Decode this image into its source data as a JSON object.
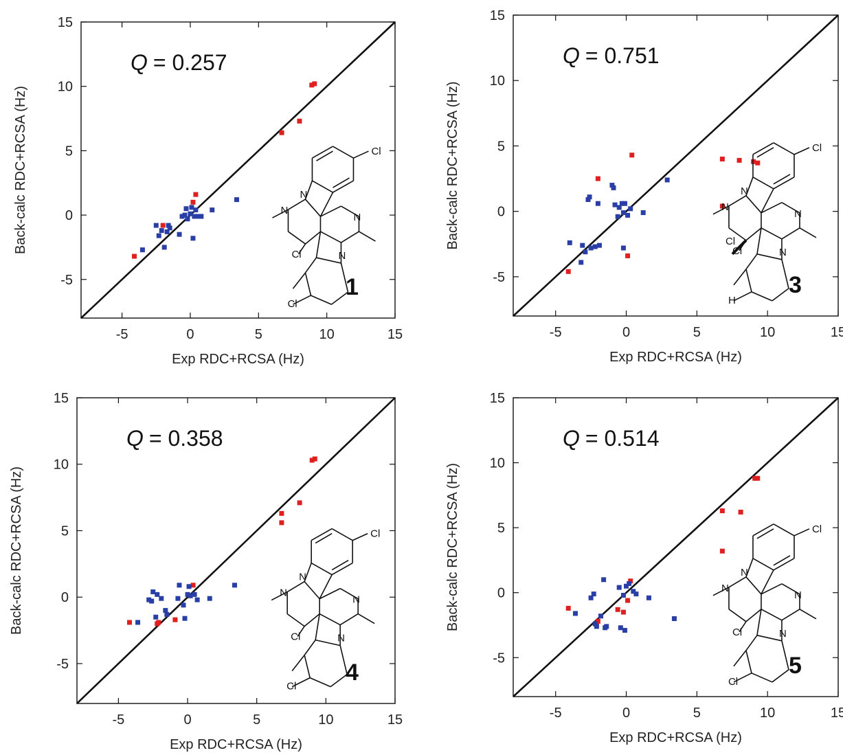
{
  "chart_data": [
    {
      "type": "scatter",
      "q_symbol": "Q",
      "q_text": "= 0.257",
      "compound_number": "1",
      "xlabel": "Exp RDC+RCSA (Hz)",
      "ylabel": "Back-calc RDC+RCSA (Hz)",
      "xlim": [
        -8,
        15
      ],
      "ylim": [
        -8,
        15
      ],
      "xticks": [
        -5,
        0,
        5,
        10,
        15
      ],
      "yticks": [
        -5,
        0,
        5,
        10,
        15
      ],
      "diagonal": "y = x",
      "molecule_labels": [
        "Cl",
        "N",
        "N",
        "N",
        "N",
        "Cl",
        "Cl"
      ],
      "series": [
        {
          "color": "#e02020",
          "points": [
            [
              -4.1,
              -3.2
            ],
            [
              -2.0,
              -0.8
            ],
            [
              0.2,
              1.0
            ],
            [
              0.4,
              1.6
            ],
            [
              6.7,
              6.4
            ],
            [
              8.0,
              7.3
            ],
            [
              8.9,
              10.1
            ],
            [
              9.1,
              10.2
            ]
          ]
        },
        {
          "color": "#2a3fa5",
          "points": [
            [
              -3.5,
              -2.7
            ],
            [
              -2.5,
              -0.8
            ],
            [
              -2.3,
              -1.6
            ],
            [
              -2.1,
              -1.2
            ],
            [
              -1.9,
              -2.5
            ],
            [
              -1.7,
              -1.3
            ],
            [
              -1.6,
              -0.8
            ],
            [
              -1.5,
              -1.0
            ],
            [
              -0.8,
              -1.5
            ],
            [
              -0.6,
              -0.1
            ],
            [
              -0.4,
              0.0
            ],
            [
              -0.3,
              0.5
            ],
            [
              -0.2,
              -0.3
            ],
            [
              0.0,
              0.1
            ],
            [
              0.1,
              0.6
            ],
            [
              0.2,
              -1.8
            ],
            [
              0.3,
              -0.1
            ],
            [
              0.4,
              0.4
            ],
            [
              0.6,
              -0.1
            ],
            [
              0.8,
              -0.1
            ],
            [
              1.6,
              0.4
            ],
            [
              3.4,
              1.2
            ]
          ]
        }
      ]
    },
    {
      "type": "scatter",
      "q_symbol": "Q",
      "q_text": "= 0.751",
      "compound_number": "3",
      "xlabel": "Exp RDC+RCSA (Hz)",
      "ylabel": "Back-calc RDC+RCSA (Hz)",
      "xlim": [
        -8,
        15
      ],
      "ylim": [
        -8,
        15
      ],
      "xticks": [
        -5,
        0,
        5,
        10,
        15
      ],
      "yticks": [
        -5,
        0,
        5,
        10,
        15
      ],
      "diagonal": "y = x",
      "molecule_labels": [
        "Cl",
        "N",
        "N",
        "N",
        "N",
        "Cl",
        "H",
        "Cl"
      ],
      "series": [
        {
          "color": "#e02020",
          "points": [
            [
              -4.1,
              -4.6
            ],
            [
              -2.0,
              2.5
            ],
            [
              0.1,
              -3.4
            ],
            [
              0.4,
              4.3
            ],
            [
              6.8,
              4.0
            ],
            [
              6.8,
              0.4
            ],
            [
              8.0,
              3.9
            ],
            [
              9.0,
              3.8
            ],
            [
              9.3,
              3.7
            ]
          ]
        },
        {
          "color": "#2a3fa5",
          "points": [
            [
              -4.0,
              -2.4
            ],
            [
              -3.2,
              -3.9
            ],
            [
              -3.1,
              -2.6
            ],
            [
              -2.9,
              -3.1
            ],
            [
              -2.7,
              0.9
            ],
            [
              -2.6,
              1.1
            ],
            [
              -2.5,
              -2.8
            ],
            [
              -2.2,
              -2.7
            ],
            [
              -2.0,
              0.6
            ],
            [
              -1.9,
              -2.6
            ],
            [
              -1.0,
              2.0
            ],
            [
              -0.9,
              1.8
            ],
            [
              -0.8,
              0.5
            ],
            [
              -0.6,
              -0.4
            ],
            [
              -0.5,
              0.3
            ],
            [
              -0.3,
              0.6
            ],
            [
              -0.2,
              -0.1
            ],
            [
              -0.2,
              -2.8
            ],
            [
              -0.1,
              0.6
            ],
            [
              0.1,
              -0.3
            ],
            [
              0.3,
              0.2
            ],
            [
              1.2,
              -0.1
            ],
            [
              2.9,
              2.4
            ]
          ]
        }
      ]
    },
    {
      "type": "scatter",
      "q_symbol": "Q",
      "q_text": "= 0.358",
      "compound_number": "4",
      "xlabel": "Exp RDC+RCSA (Hz)",
      "ylabel": "Back-calc RDC+RCSA (Hz)",
      "xlim": [
        -8,
        15
      ],
      "ylim": [
        -8,
        15
      ],
      "xticks": [
        -5,
        0,
        5,
        10,
        15
      ],
      "yticks": [
        -5,
        0,
        5,
        10,
        15
      ],
      "diagonal": "y = x",
      "molecule_labels": [
        "Cl",
        "N",
        "N",
        "N",
        "N",
        "Cl",
        "Cl"
      ],
      "series": [
        {
          "color": "#e02020",
          "points": [
            [
              -4.2,
              -1.9
            ],
            [
              -2.2,
              -2.0
            ],
            [
              -2.1,
              -1.9
            ],
            [
              -0.9,
              -1.7
            ],
            [
              0.4,
              0.9
            ],
            [
              6.8,
              6.3
            ],
            [
              6.8,
              5.6
            ],
            [
              8.1,
              7.1
            ],
            [
              9.0,
              10.3
            ],
            [
              9.2,
              10.4
            ]
          ]
        },
        {
          "color": "#2a3fa5",
          "points": [
            [
              -3.6,
              -1.9
            ],
            [
              -2.8,
              -0.2
            ],
            [
              -2.6,
              -0.3
            ],
            [
              -2.5,
              0.4
            ],
            [
              -2.3,
              -1.5
            ],
            [
              -2.2,
              0.2
            ],
            [
              -1.9,
              -0.1
            ],
            [
              -1.6,
              -1.0
            ],
            [
              -1.5,
              -1.3
            ],
            [
              -0.7,
              -0.1
            ],
            [
              -0.6,
              0.9
            ],
            [
              -0.3,
              -0.6
            ],
            [
              -0.2,
              -1.6
            ],
            [
              0.0,
              0.2
            ],
            [
              0.1,
              0.8
            ],
            [
              0.2,
              0.1
            ],
            [
              0.5,
              0.2
            ],
            [
              0.7,
              -0.2
            ],
            [
              1.6,
              -0.1
            ],
            [
              3.4,
              0.9
            ]
          ]
        }
      ]
    },
    {
      "type": "scatter",
      "q_symbol": "Q",
      "q_text": "= 0.514",
      "compound_number": "5",
      "xlabel": "Exp RDC+RCSA (Hz)",
      "ylabel": "Back-calc RDC+RCSA (Hz)",
      "xlim": [
        -8,
        15
      ],
      "ylim": [
        -8,
        15
      ],
      "xticks": [
        -5,
        0,
        5,
        10,
        15
      ],
      "yticks": [
        -5,
        0,
        5,
        10,
        15
      ],
      "diagonal": "y = x",
      "molecule_labels": [
        "Cl",
        "N",
        "N",
        "N",
        "N",
        "Cl",
        "Cl"
      ],
      "series": [
        {
          "color": "#e02020",
          "points": [
            [
              -4.1,
              -1.2
            ],
            [
              -2.1,
              -2.4
            ],
            [
              -2.0,
              -2.2
            ],
            [
              -0.6,
              -1.3
            ],
            [
              -0.2,
              -1.5
            ],
            [
              0.1,
              -0.6
            ],
            [
              0.3,
              0.9
            ],
            [
              6.8,
              6.3
            ],
            [
              6.8,
              3.2
            ],
            [
              8.1,
              6.2
            ],
            [
              9.1,
              8.8
            ],
            [
              9.3,
              8.8
            ]
          ]
        },
        {
          "color": "#2a3fa5",
          "points": [
            [
              -3.6,
              -1.6
            ],
            [
              -2.5,
              -0.4
            ],
            [
              -2.3,
              -0.1
            ],
            [
              -2.2,
              -2.4
            ],
            [
              -2.1,
              -2.6
            ],
            [
              -1.8,
              -1.8
            ],
            [
              -1.6,
              1.0
            ],
            [
              -1.5,
              -2.7
            ],
            [
              -1.4,
              -2.6
            ],
            [
              -0.5,
              0.4
            ],
            [
              -0.4,
              -2.7
            ],
            [
              -0.2,
              -0.2
            ],
            [
              -0.1,
              -2.9
            ],
            [
              0.0,
              0.5
            ],
            [
              0.2,
              0.7
            ],
            [
              0.5,
              0.1
            ],
            [
              0.7,
              -0.1
            ],
            [
              1.6,
              -0.4
            ],
            [
              3.4,
              -2.0
            ]
          ]
        }
      ]
    }
  ]
}
